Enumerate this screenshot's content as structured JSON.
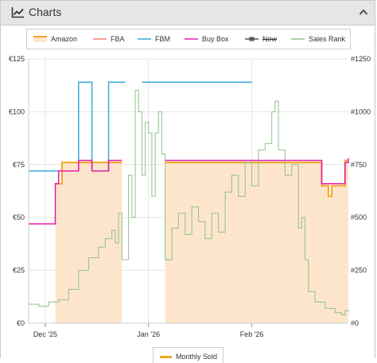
{
  "panel": {
    "title": "Charts",
    "icon": "line-chart-icon",
    "collapse_icon": "chevron-up-icon"
  },
  "legend": {
    "items": [
      {
        "label": "Amazon",
        "color": "#f5a623",
        "fill": "#fde5cc",
        "kind": "area"
      },
      {
        "label": "FBA",
        "color": "#f4826a",
        "kind": "line"
      },
      {
        "label": "FBM",
        "color": "#3aa9dd",
        "kind": "line"
      },
      {
        "label": "Buy Box",
        "color": "#e81aa8",
        "kind": "line"
      },
      {
        "label": "New",
        "color": "#555555",
        "kind": "line-square",
        "disabled": true
      },
      {
        "label": "Sales Rank",
        "color": "#8fc18a",
        "kind": "line"
      }
    ]
  },
  "bottom_legend": {
    "label": "Monthly Sold",
    "color": "#f5a623"
  },
  "chart_data": {
    "type": "line",
    "x_ticks": [
      "Dec '25",
      "Jan '26",
      "Feb '26"
    ],
    "x_range": [
      "2025-11-26",
      "2026-03-02"
    ],
    "x_tick_dates": [
      "2025-12-01",
      "2026-01-01",
      "2026-02-01"
    ],
    "y_left": {
      "ticks": [
        "€0",
        "€25",
        "€50",
        "€75",
        "€100",
        "€125"
      ],
      "range": [
        0,
        125
      ]
    },
    "y_right": {
      "ticks": [
        "#0",
        "#250",
        "#500",
        "#750",
        "#1000",
        "#1250"
      ],
      "range": [
        0,
        1250
      ]
    },
    "grid": true,
    "series": [
      {
        "name": "Amazon",
        "step": true,
        "points": [
          [
            "2025-11-26",
            null
          ],
          [
            "2025-12-04",
            66
          ],
          [
            "2025-12-06",
            76
          ],
          [
            "2025-12-24",
            76
          ],
          [
            "2025-12-24",
            null
          ],
          [
            "2026-01-06",
            null
          ],
          [
            "2026-01-06",
            76
          ],
          [
            "2026-02-14",
            76
          ],
          [
            "2026-02-22",
            65
          ],
          [
            "2026-02-24",
            60
          ],
          [
            "2026-02-25",
            65
          ],
          [
            "2026-03-01",
            77
          ],
          [
            "2026-03-02",
            77
          ]
        ]
      },
      {
        "name": "FBM",
        "step": true,
        "points": [
          [
            "2025-11-26",
            72
          ],
          [
            "2025-12-06",
            72
          ],
          [
            "2025-12-11",
            114
          ],
          [
            "2025-12-15",
            72
          ],
          [
            "2025-12-20",
            114
          ],
          [
            "2025-12-25",
            114
          ],
          [
            "2025-12-25",
            null
          ],
          [
            "2025-12-30",
            null
          ],
          [
            "2025-12-30",
            114
          ],
          [
            "2026-02-01",
            114
          ]
        ]
      },
      {
        "name": "Buy Box",
        "step": true,
        "points": [
          [
            "2025-11-26",
            47
          ],
          [
            "2025-12-03",
            47
          ],
          [
            "2025-12-04",
            66
          ],
          [
            "2025-12-05",
            72
          ],
          [
            "2025-12-11",
            77
          ],
          [
            "2025-12-15",
            72
          ],
          [
            "2025-12-20",
            77
          ],
          [
            "2025-12-24",
            77
          ],
          [
            "2025-12-24",
            null
          ],
          [
            "2026-01-06",
            null
          ],
          [
            "2026-01-06",
            77
          ],
          [
            "2026-02-14",
            77
          ],
          [
            "2026-02-22",
            66
          ],
          [
            "2026-03-01",
            76
          ],
          [
            "2026-03-02",
            78
          ]
        ]
      },
      {
        "name": "Sales Rank",
        "axis": "right",
        "step": true,
        "points": [
          [
            "2025-11-26",
            90
          ],
          [
            "2025-11-29",
            80
          ],
          [
            "2025-12-02",
            100
          ],
          [
            "2025-12-05",
            110
          ],
          [
            "2025-12-08",
            160
          ],
          [
            "2025-12-11",
            250
          ],
          [
            "2025-12-14",
            310
          ],
          [
            "2025-12-17",
            360
          ],
          [
            "2025-12-19",
            400
          ],
          [
            "2025-12-21",
            440
          ],
          [
            "2025-12-22",
            380
          ],
          [
            "2025-12-23",
            520
          ],
          [
            "2025-12-24",
            300
          ],
          [
            "2025-12-26",
            700
          ],
          [
            "2025-12-27",
            500
          ],
          [
            "2025-12-28",
            1100
          ],
          [
            "2025-12-29",
            1000
          ],
          [
            "2025-12-30",
            700
          ],
          [
            "2025-12-31",
            950
          ],
          [
            "2026-01-01",
            900
          ],
          [
            "2026-01-02",
            600
          ],
          [
            "2026-01-03",
            900
          ],
          [
            "2026-01-04",
            1000
          ],
          [
            "2026-01-05",
            800
          ],
          [
            "2026-01-06",
            300
          ],
          [
            "2026-01-08",
            450
          ],
          [
            "2026-01-10",
            520
          ],
          [
            "2026-01-12",
            420
          ],
          [
            "2026-01-14",
            550
          ],
          [
            "2026-01-16",
            480
          ],
          [
            "2026-01-18",
            400
          ],
          [
            "2026-01-20",
            520
          ],
          [
            "2026-01-22",
            430
          ],
          [
            "2026-01-24",
            620
          ],
          [
            "2026-01-26",
            700
          ],
          [
            "2026-01-28",
            600
          ],
          [
            "2026-01-30",
            760
          ],
          [
            "2026-02-01",
            650
          ],
          [
            "2026-02-03",
            820
          ],
          [
            "2026-02-05",
            850
          ],
          [
            "2026-02-07",
            1000
          ],
          [
            "2026-02-08",
            1050
          ],
          [
            "2026-02-09",
            820
          ],
          [
            "2026-02-11",
            700
          ],
          [
            "2026-02-13",
            750
          ],
          [
            "2026-02-15",
            450
          ],
          [
            "2026-02-16",
            500
          ],
          [
            "2026-02-17",
            300
          ],
          [
            "2026-02-18",
            150
          ],
          [
            "2026-02-20",
            100
          ],
          [
            "2026-02-23",
            70
          ],
          [
            "2026-02-26",
            50
          ],
          [
            "2026-02-28",
            40
          ],
          [
            "2026-03-01",
            60
          ],
          [
            "2026-03-02",
            55
          ]
        ]
      }
    ]
  }
}
